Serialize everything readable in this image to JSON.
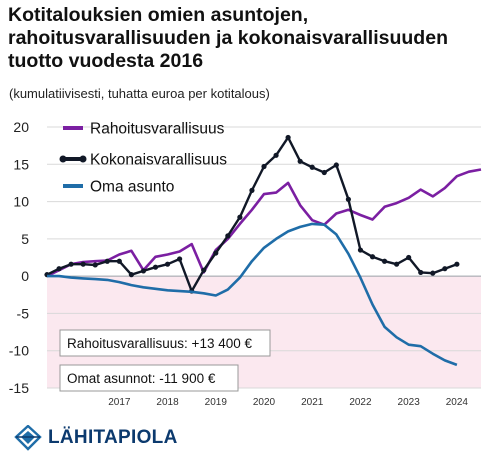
{
  "title": "Kotitalouksien omien asuntojen, rahoitusvarallisuuden ja kokonaisvarallisuuden tuotto vuodesta 2016",
  "subtitle": "(kumulatiivisesti, tuhatta euroa per kotitalous)",
  "logo_text": "LÄHITAPIOLA",
  "colors": {
    "rahoitus": "#7b1fa2",
    "kokonais": "#111827",
    "oma_asunto": "#1f6da8",
    "negative_band": "#fbe8ef",
    "annotation_border": "#999999"
  },
  "annotations": [
    {
      "text": "Rahoitusvarallisuus: +13 400 €",
      "series": "Rahoitusvarallisuus"
    },
    {
      "text": "Omat asunnot: -11 900 €",
      "series": "Oma asunto"
    }
  ],
  "chart_data": {
    "type": "line",
    "title": "Kotitalouksien omien asuntojen, rahoitusvarallisuuden ja kokonaisvarallisuuden tuotto vuodesta 2016",
    "subtitle": "(kumulatiivisesti, tuhatta euroa per kotitalous)",
    "xlabel": "",
    "ylabel": "",
    "x_tick_labels": [
      "2017",
      "2018",
      "2019",
      "2020",
      "2021",
      "2022",
      "2023",
      "2024"
    ],
    "y_ticks": [
      20,
      15,
      10,
      5,
      0,
      -5,
      -10,
      -15
    ],
    "ylim": [
      -15,
      20
    ],
    "xlim": [
      2016.0,
      2025.0
    ],
    "grid": "horizontal",
    "negative_region_shaded": true,
    "legend_position": "top-left",
    "series": [
      {
        "name": "Rahoitusvarallisuus",
        "marker": "none",
        "x": [
          2016.0,
          2016.25,
          2016.5,
          2016.75,
          2017.0,
          2017.25,
          2017.5,
          2017.75,
          2018.0,
          2018.25,
          2018.5,
          2018.75,
          2019.0,
          2019.25,
          2019.5,
          2019.75,
          2020.0,
          2020.25,
          2020.5,
          2020.75,
          2021.0,
          2021.25,
          2021.5,
          2021.75,
          2022.0,
          2022.25,
          2022.5,
          2022.75,
          2023.0,
          2023.25,
          2023.5,
          2023.75,
          2024.0,
          2024.25,
          2024.5,
          2024.75,
          2025.0
        ],
        "values": [
          0.0,
          0.8,
          1.6,
          1.9,
          2.0,
          2.1,
          2.9,
          3.4,
          0.8,
          2.6,
          2.9,
          3.3,
          4.3,
          0.5,
          3.5,
          5.0,
          7.0,
          8.9,
          11.0,
          11.2,
          12.5,
          9.5,
          7.5,
          6.9,
          8.4,
          8.9,
          8.2,
          7.6,
          9.3,
          9.8,
          10.5,
          11.6,
          10.7,
          11.8,
          13.4,
          14.0,
          14.3
        ],
        "color": "#7b1fa2"
      },
      {
        "name": "Kokonaisvarallisuus",
        "marker": "dot",
        "x": [
          2016.0,
          2016.25,
          2016.5,
          2016.75,
          2017.0,
          2017.25,
          2017.5,
          2017.75,
          2018.0,
          2018.25,
          2018.5,
          2018.75,
          2019.0,
          2019.25,
          2019.5,
          2019.75,
          2020.0,
          2020.25,
          2020.5,
          2020.75,
          2021.0,
          2021.25,
          2021.5,
          2021.75,
          2022.0,
          2022.25,
          2022.5,
          2022.75,
          2023.0,
          2023.25,
          2023.5,
          2023.75,
          2024.0,
          2024.25,
          2024.5
        ],
        "values": [
          0.2,
          1.0,
          1.6,
          1.6,
          1.5,
          2.0,
          2.0,
          0.2,
          0.7,
          1.2,
          1.6,
          2.3,
          -2.0,
          0.8,
          3.1,
          5.4,
          7.9,
          11.5,
          14.7,
          16.2,
          18.6,
          15.4,
          14.6,
          13.9,
          14.9,
          10.3,
          3.5,
          2.6,
          2.0,
          1.6,
          2.5,
          0.5,
          0.4,
          1.0,
          1.6
        ],
        "color": "#111827"
      },
      {
        "name": "Oma asunto",
        "marker": "none",
        "x": [
          2016.0,
          2016.25,
          2016.5,
          2016.75,
          2017.0,
          2017.25,
          2017.5,
          2017.75,
          2018.0,
          2018.25,
          2018.5,
          2018.75,
          2019.0,
          2019.25,
          2019.5,
          2019.75,
          2020.0,
          2020.25,
          2020.5,
          2020.75,
          2021.0,
          2021.25,
          2021.5,
          2021.75,
          2022.0,
          2022.25,
          2022.5,
          2022.75,
          2023.0,
          2023.25,
          2023.5,
          2023.75,
          2024.0,
          2024.25,
          2024.5
        ],
        "values": [
          0.0,
          0.0,
          -0.2,
          -0.3,
          -0.4,
          -0.5,
          -0.8,
          -1.2,
          -1.5,
          -1.7,
          -1.9,
          -2.0,
          -2.1,
          -2.3,
          -2.6,
          -1.8,
          -0.2,
          2.0,
          3.8,
          5.0,
          6.0,
          6.6,
          7.0,
          6.9,
          5.6,
          3.0,
          -0.2,
          -3.8,
          -6.8,
          -8.2,
          -9.2,
          -9.4,
          -10.4,
          -11.3,
          -11.9
        ],
        "color": "#1f6da8"
      }
    ]
  }
}
